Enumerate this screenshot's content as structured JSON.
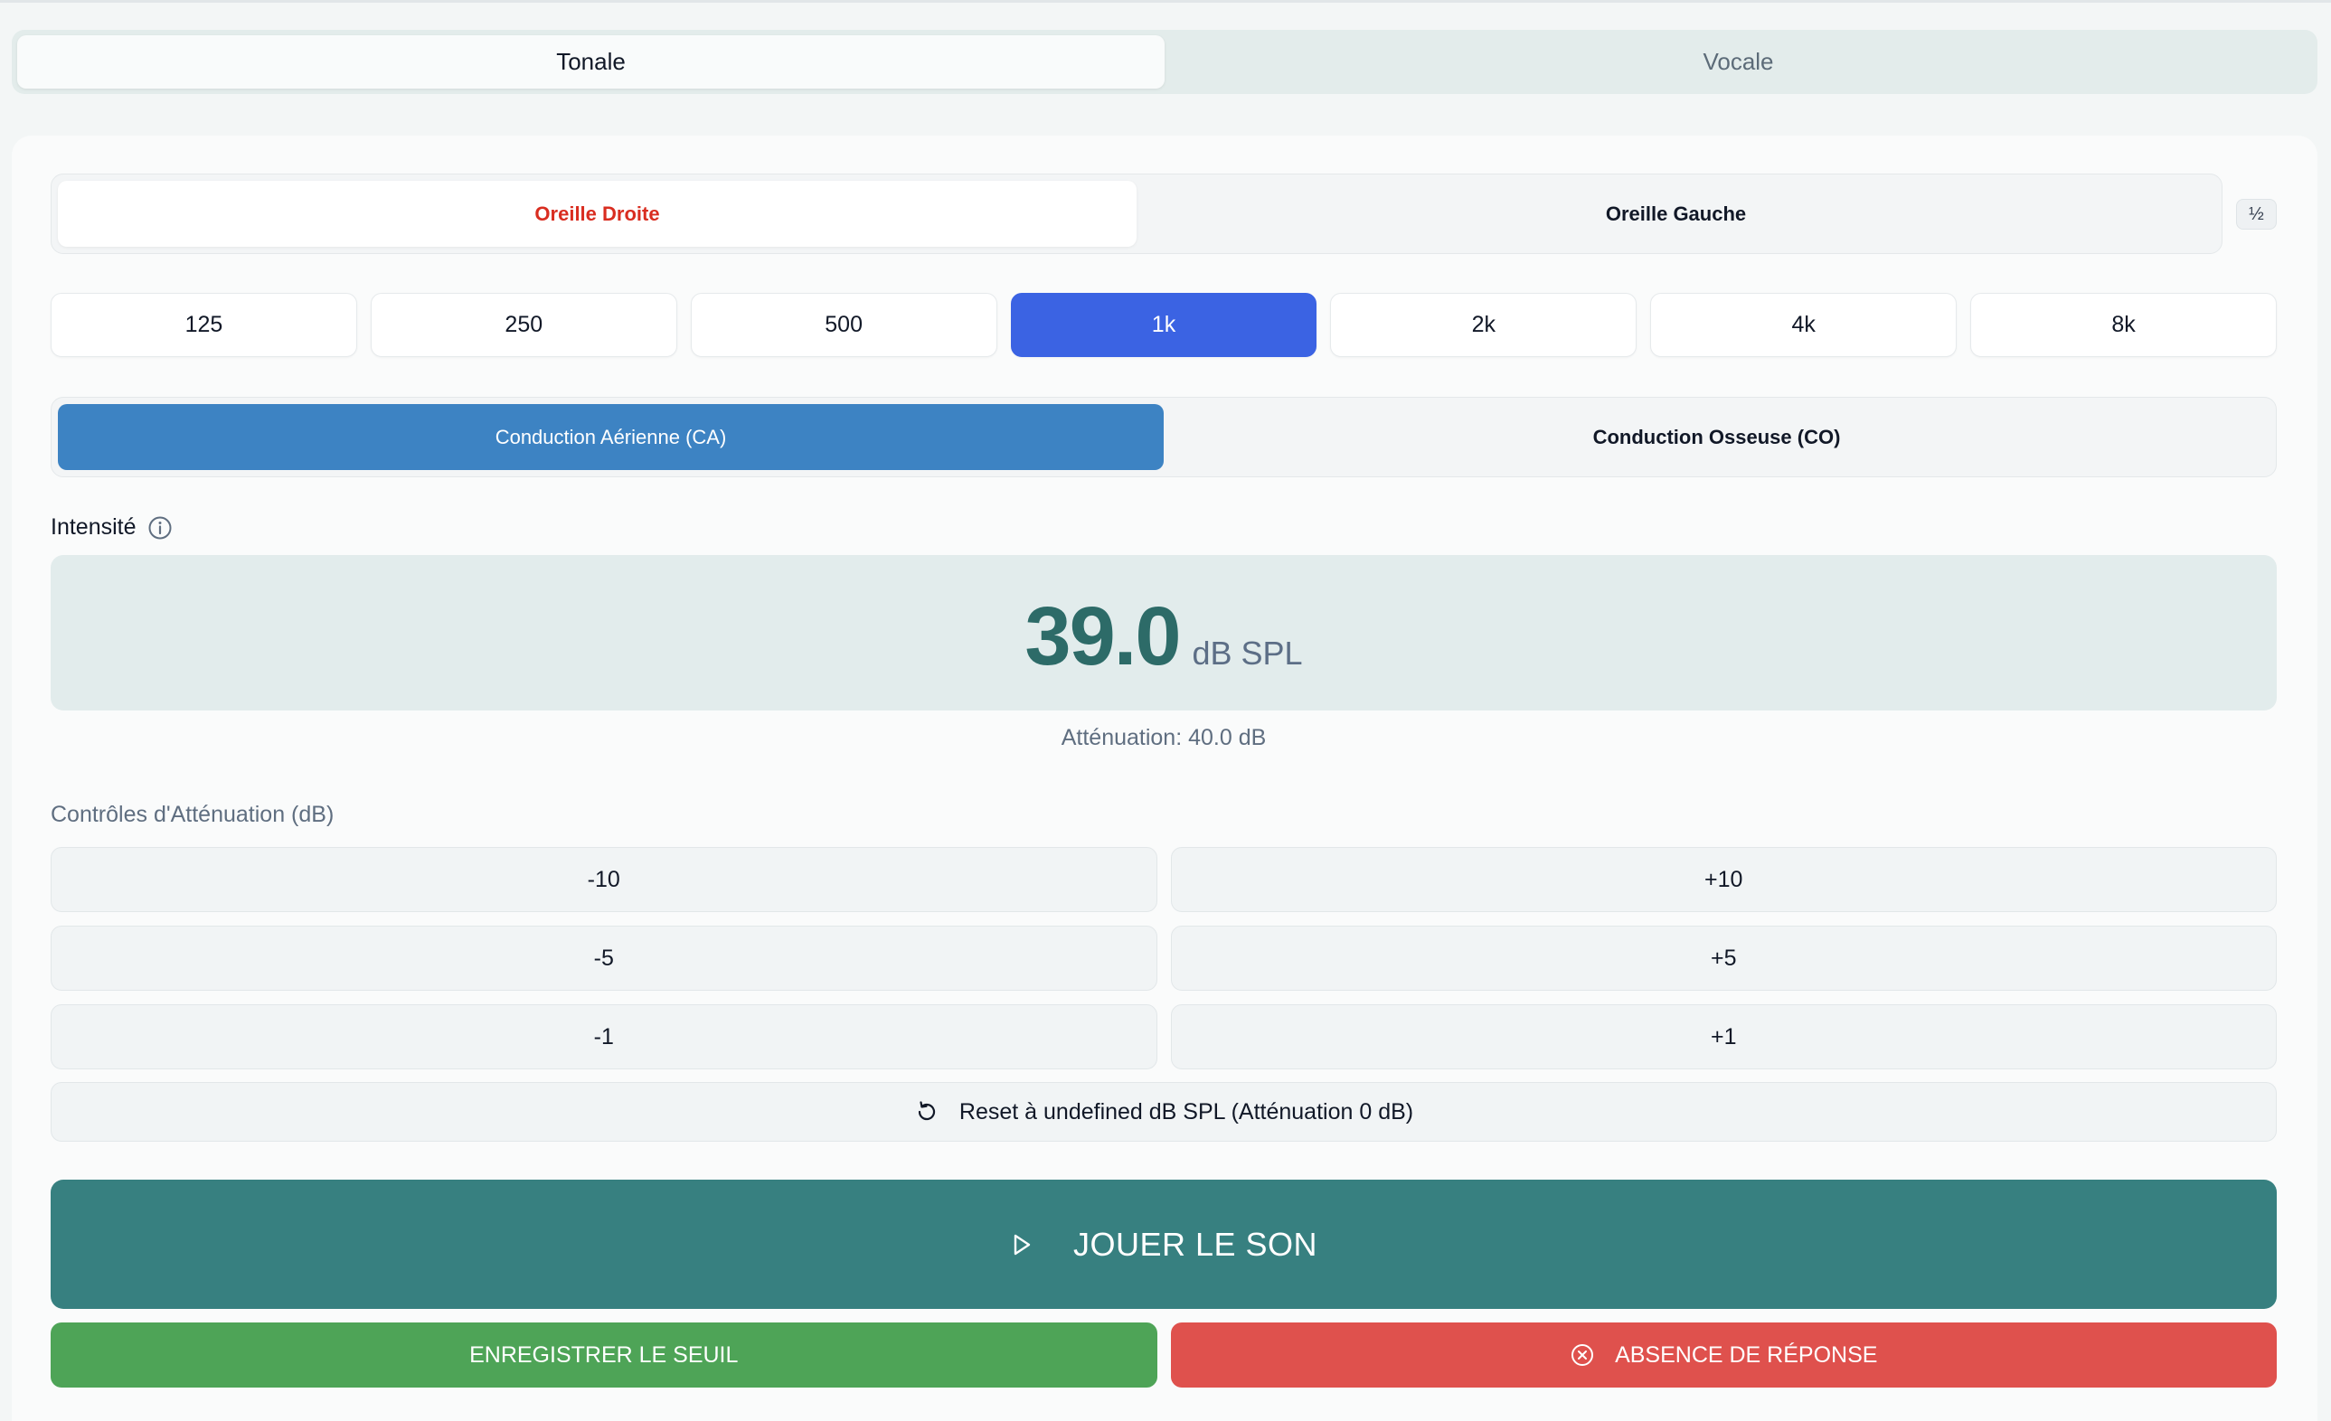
{
  "main_tabs": [
    {
      "label": "Tonale",
      "active": true
    },
    {
      "label": "Vocale",
      "active": false
    }
  ],
  "ear_tabs": [
    {
      "label": "Oreille Droite",
      "active": true
    },
    {
      "label": "Oreille Gauche",
      "active": false
    }
  ],
  "half_button": {
    "label": "½"
  },
  "frequencies": [
    "125",
    "250",
    "500",
    "1k",
    "2k",
    "4k",
    "8k"
  ],
  "selected_frequency": "1k",
  "conduction_tabs": [
    {
      "label": "Conduction Aérienne (CA)",
      "active": true
    },
    {
      "label": "Conduction Osseuse (CO)",
      "active": false
    }
  ],
  "intensity": {
    "label": "Intensité",
    "value": "39.0",
    "unit": "dB SPL",
    "attenuation_text": "Atténuation: 40.0 dB"
  },
  "controls": {
    "title": "Contrôles d'Atténuation (dB)",
    "buttons": [
      "-10",
      "+10",
      "-5",
      "+5",
      "-1",
      "+1"
    ],
    "reset_label": "Reset à undefined dB SPL (Atténuation 0 dB)"
  },
  "actions": {
    "play_label": "JOUER LE SON",
    "save_label": "ENREGISTRER LE SEUIL",
    "no_response_label": "ABSENCE DE RÉPONSE"
  },
  "colors": {
    "accent_blue": "#3b63e3",
    "conduction_blue": "#3d83c3",
    "teal": "#378080",
    "intensity_text": "#2d6b68",
    "green": "#4ea457",
    "red": "#df514d",
    "ear_right_red": "#d92d20"
  }
}
